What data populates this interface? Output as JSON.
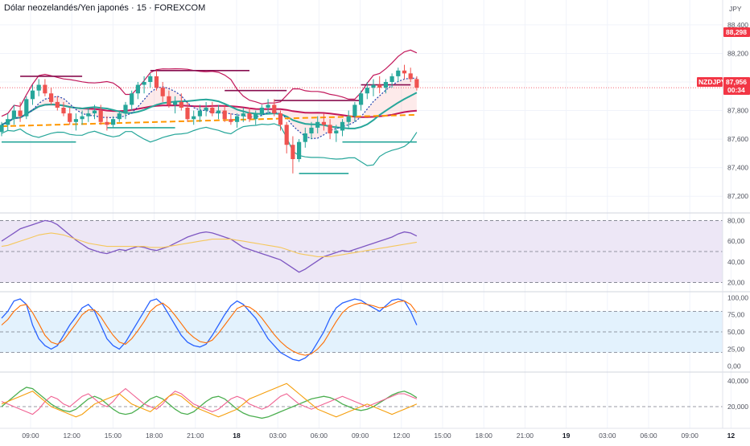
{
  "header": {
    "title": "Dólar neozelandés/Yen japonés · 15 · FOREXCOM",
    "currency": "JPY"
  },
  "price_scale": {
    "ticks": [
      "88,400",
      "88,200",
      "88,000",
      "87,800",
      "87,600",
      "87,400",
      "87,200"
    ],
    "high_badge": "88,298",
    "symbol": "NZDJPY",
    "last_price": "87,956",
    "countdown": "00:34"
  },
  "rsi_scale": {
    "ticks": [
      "80,00",
      "60,00",
      "40,00",
      "20,00"
    ]
  },
  "stoch_scale": {
    "ticks": [
      "100,00",
      "75,00",
      "50,00",
      "25,00",
      "0,00"
    ]
  },
  "dmi_scale": {
    "ticks": [
      "40,000",
      "20,000"
    ]
  },
  "time_axis": {
    "labels": [
      "09:00",
      "12:00",
      "15:00",
      "18:00",
      "21:00",
      "18",
      "03:00",
      "06:00",
      "09:00",
      "12:00",
      "15:00",
      "18:00",
      "21:00",
      "19",
      "03:00",
      "06:00",
      "09:00",
      "12"
    ]
  },
  "colors": {
    "up": "#26a69a",
    "down": "#ef5350",
    "high_badge": "#f23645",
    "last_badge": "#f23645",
    "rsi": "#7e57c2",
    "rsi_ma": "#f5c75c",
    "rsi_band": "#ede7f6",
    "stoch_k": "#2962ff",
    "stoch_d": "#ff6d00",
    "stoch_band": "#e3f2fd",
    "bb_band": "#c2185b",
    "bb_mid": "#26a69a",
    "ma_dash": "#1e40af",
    "trend_orange": "#ff9800",
    "resistance": "#880e4f"
  },
  "chart_data": [
    {
      "type": "candlestick",
      "title": "Dólar neozelandés/Yen japonés · 15 · FOREXCOM",
      "ylim": [
        87.1,
        88.45
      ],
      "candles": [
        [
          87.65,
          87.72,
          87.62,
          87.7
        ],
        [
          87.7,
          87.78,
          87.66,
          87.74
        ],
        [
          87.74,
          87.84,
          87.7,
          87.8
        ],
        [
          87.8,
          87.86,
          87.72,
          87.76
        ],
        [
          87.76,
          87.9,
          87.74,
          87.88
        ],
        [
          87.88,
          87.98,
          87.84,
          87.94
        ],
        [
          87.94,
          88.02,
          87.9,
          87.98
        ],
        [
          87.98,
          88.02,
          87.9,
          87.92
        ],
        [
          87.92,
          87.96,
          87.84,
          87.86
        ],
        [
          87.86,
          87.9,
          87.8,
          87.82
        ],
        [
          87.82,
          87.86,
          87.76,
          87.78
        ],
        [
          87.78,
          87.82,
          87.7,
          87.72
        ],
        [
          87.72,
          87.78,
          87.66,
          87.74
        ],
        [
          87.74,
          87.8,
          87.7,
          87.76
        ],
        [
          87.76,
          87.82,
          87.72,
          87.78
        ],
        [
          87.78,
          87.84,
          87.74,
          87.8
        ],
        [
          87.8,
          87.84,
          87.7,
          87.72
        ],
        [
          87.72,
          87.76,
          87.66,
          87.7
        ],
        [
          87.7,
          87.76,
          87.68,
          87.74
        ],
        [
          87.74,
          87.8,
          87.72,
          87.78
        ],
        [
          87.78,
          87.86,
          87.74,
          87.84
        ],
        [
          87.84,
          87.94,
          87.8,
          87.92
        ],
        [
          87.92,
          88.0,
          87.88,
          87.98
        ],
        [
          87.98,
          88.04,
          87.92,
          88.0
        ],
        [
          88.0,
          88.06,
          87.96,
          88.04
        ],
        [
          88.04,
          88.08,
          87.94,
          87.96
        ],
        [
          87.96,
          88.0,
          87.86,
          87.9
        ],
        [
          87.9,
          87.94,
          87.82,
          87.84
        ],
        [
          87.84,
          87.9,
          87.78,
          87.86
        ],
        [
          87.86,
          87.92,
          87.8,
          87.82
        ],
        [
          87.82,
          87.86,
          87.72,
          87.74
        ],
        [
          87.74,
          87.8,
          87.7,
          87.76
        ],
        [
          87.76,
          87.84,
          87.72,
          87.8
        ],
        [
          87.8,
          87.86,
          87.76,
          87.82
        ],
        [
          87.82,
          87.86,
          87.76,
          87.78
        ],
        [
          87.78,
          87.84,
          87.74,
          87.8
        ],
        [
          87.8,
          87.84,
          87.72,
          87.74
        ],
        [
          87.74,
          87.78,
          87.7,
          87.72
        ],
        [
          87.72,
          87.78,
          87.68,
          87.76
        ],
        [
          87.76,
          87.82,
          87.72,
          87.78
        ],
        [
          87.78,
          87.82,
          87.72,
          87.74
        ],
        [
          87.74,
          87.8,
          87.7,
          87.78
        ],
        [
          87.78,
          87.84,
          87.76,
          87.82
        ],
        [
          87.82,
          87.88,
          87.78,
          87.84
        ],
        [
          87.84,
          87.88,
          87.76,
          87.78
        ],
        [
          87.78,
          87.8,
          87.66,
          87.7
        ],
        [
          87.7,
          87.72,
          87.5,
          87.56
        ],
        [
          87.56,
          87.62,
          87.36,
          87.46
        ],
        [
          87.46,
          87.6,
          87.44,
          87.58
        ],
        [
          87.58,
          87.68,
          87.54,
          87.64
        ],
        [
          87.64,
          87.72,
          87.6,
          87.68
        ],
        [
          87.68,
          87.76,
          87.64,
          87.72
        ],
        [
          87.72,
          87.78,
          87.66,
          87.7
        ],
        [
          87.7,
          87.74,
          87.6,
          87.64
        ],
        [
          87.64,
          87.7,
          87.58,
          87.66
        ],
        [
          87.66,
          87.74,
          87.62,
          87.72
        ],
        [
          87.72,
          87.8,
          87.68,
          87.76
        ],
        [
          87.76,
          87.86,
          87.72,
          87.84
        ],
        [
          87.84,
          87.94,
          87.8,
          87.92
        ],
        [
          87.92,
          88.0,
          87.88,
          87.96
        ],
        [
          87.96,
          88.02,
          87.9,
          87.98
        ],
        [
          87.98,
          88.04,
          87.92,
          87.96
        ],
        [
          87.96,
          88.02,
          87.92,
          88.0
        ],
        [
          88.0,
          88.06,
          87.96,
          88.04
        ],
        [
          88.04,
          88.1,
          88.0,
          88.08
        ],
        [
          88.08,
          88.12,
          88.02,
          88.06
        ],
        [
          88.06,
          88.1,
          88.0,
          88.02
        ],
        [
          88.02,
          88.04,
          87.94,
          87.96
        ]
      ],
      "annotations": [
        "88,298",
        "87,956"
      ]
    },
    {
      "type": "line",
      "title": "",
      "ylim": [
        15,
        85
      ],
      "levels": [
        80,
        50,
        20
      ],
      "series": [
        {
          "values": [
            60,
            64,
            68,
            72,
            74,
            76,
            78,
            80,
            79,
            76,
            71,
            66,
            61,
            57,
            53,
            51,
            49,
            48,
            50,
            52,
            51,
            53,
            55,
            54,
            52,
            51,
            53,
            55,
            58,
            61,
            64,
            66,
            68,
            69,
            68,
            66,
            64,
            62,
            58,
            54,
            52,
            50,
            48,
            46,
            44,
            42,
            38,
            34,
            30,
            33,
            37,
            41,
            45,
            47,
            49,
            51,
            50,
            52,
            54,
            56,
            58,
            60,
            62,
            64,
            67,
            69,
            68,
            65
          ]
        },
        {
          "values": [
            55,
            56,
            58,
            60,
            62,
            64,
            66,
            67,
            68,
            67,
            66,
            64,
            62,
            60,
            58,
            57,
            56,
            55,
            55,
            55,
            55,
            55,
            55,
            55,
            54,
            54,
            54,
            55,
            56,
            57,
            58,
            59,
            60,
            61,
            62,
            62,
            62,
            62,
            61,
            60,
            59,
            58,
            57,
            56,
            55,
            54,
            52,
            50,
            48,
            47,
            46,
            45,
            45,
            45,
            46,
            47,
            48,
            49,
            50,
            51,
            52,
            53,
            54,
            55,
            56,
            57,
            58,
            59
          ]
        }
      ]
    },
    {
      "type": "line",
      "title": "",
      "ylim": [
        -5,
        105
      ],
      "levels": [
        80,
        50,
        20
      ],
      "series": [
        {
          "values": [
            70,
            80,
            95,
            98,
            90,
            60,
            40,
            30,
            25,
            30,
            45,
            60,
            72,
            85,
            90,
            80,
            60,
            40,
            30,
            25,
            35,
            50,
            65,
            80,
            95,
            98,
            90,
            75,
            60,
            45,
            35,
            30,
            28,
            32,
            45,
            60,
            75,
            88,
            95,
            90,
            80,
            70,
            55,
            40,
            30,
            20,
            15,
            10,
            8,
            12,
            20,
            35,
            50,
            70,
            85,
            92,
            95,
            98,
            96,
            90,
            85,
            80,
            88,
            96,
            98,
            95,
            80,
            60
          ]
        },
        {
          "values": [
            60,
            68,
            80,
            88,
            90,
            78,
            62,
            45,
            35,
            32,
            38,
            50,
            62,
            75,
            82,
            82,
            72,
            58,
            45,
            35,
            32,
            40,
            52,
            65,
            80,
            88,
            92,
            85,
            74,
            62,
            50,
            42,
            36,
            34,
            38,
            48,
            60,
            72,
            84,
            88,
            86,
            80,
            70,
            58,
            46,
            36,
            28,
            22,
            18,
            16,
            18,
            25,
            35,
            50,
            65,
            78,
            86,
            90,
            92,
            90,
            88,
            85,
            86,
            90,
            94,
            95,
            90,
            78
          ]
        }
      ]
    },
    {
      "type": "line",
      "title": "",
      "ylim": [
        5,
        45
      ],
      "levels": [
        20
      ],
      "series": [
        {
          "values": [
            20,
            24,
            28,
            32,
            35,
            34,
            30,
            26,
            22,
            19,
            17,
            16,
            18,
            22,
            26,
            28,
            26,
            22,
            18,
            15,
            14,
            15,
            18,
            22,
            26,
            28,
            26,
            22,
            18,
            15,
            14,
            16,
            20,
            24,
            27,
            28,
            26,
            22,
            18,
            15,
            13,
            12,
            11,
            12,
            14,
            16,
            18,
            20,
            22,
            24,
            26,
            27,
            28,
            27,
            25,
            22,
            20,
            18,
            17,
            18,
            20,
            23,
            26,
            29,
            31,
            32,
            30,
            27
          ]
        },
        {
          "values": [
            24,
            22,
            20,
            18,
            16,
            14,
            18,
            24,
            28,
            26,
            22,
            20,
            24,
            28,
            30,
            26,
            22,
            20,
            24,
            30,
            34,
            30,
            26,
            22,
            20,
            18,
            22,
            28,
            32,
            30,
            26,
            22,
            20,
            18,
            16,
            18,
            22,
            26,
            28,
            26,
            22,
            20,
            18,
            20,
            24,
            28,
            30,
            26,
            22,
            20,
            18,
            20,
            22,
            24,
            26,
            28,
            26,
            24,
            22,
            20,
            22,
            24,
            26,
            28,
            30,
            30,
            28,
            26
          ]
        },
        {
          "values": [
            22,
            24,
            26,
            28,
            30,
            32,
            28,
            24,
            20,
            18,
            16,
            14,
            12,
            14,
            18,
            22,
            24,
            26,
            28,
            30,
            26,
            22,
            20,
            18,
            16,
            20,
            24,
            28,
            30,
            28,
            24,
            20,
            18,
            16,
            14,
            12,
            14,
            16,
            18,
            22,
            26,
            28,
            30,
            32,
            34,
            36,
            38,
            34,
            30,
            26,
            22,
            18,
            16,
            14,
            12,
            14,
            16,
            18,
            20,
            22,
            20,
            18,
            16,
            14,
            16,
            18,
            20,
            22
          ]
        }
      ]
    }
  ]
}
